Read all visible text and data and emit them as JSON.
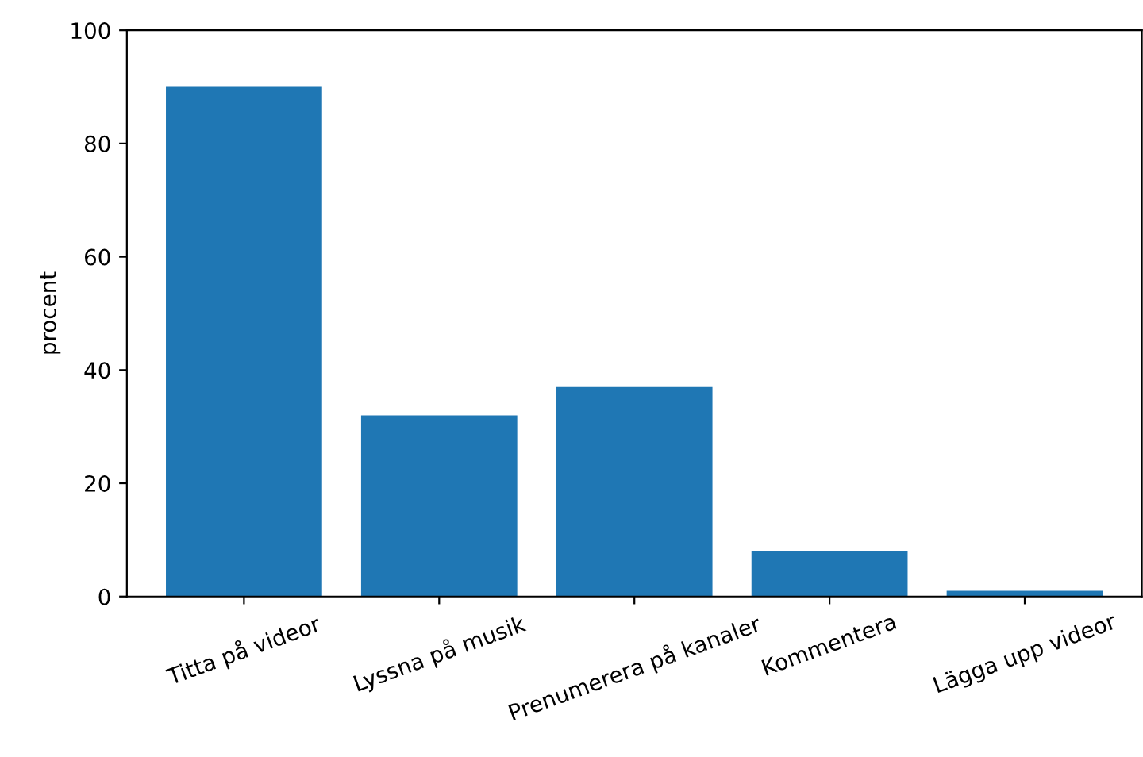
{
  "chart_data": {
    "type": "bar",
    "ylabel": "procent",
    "categories": [
      "Titta på videor",
      "Lyssna på musik",
      "Prenumerera på kanaler",
      "Kommentera",
      "Lägga upp videor"
    ],
    "values": [
      90,
      32,
      37,
      8,
      1
    ],
    "color": "#1f77b4",
    "ylim": [
      0,
      100
    ],
    "yticks": [
      0,
      20,
      40,
      60,
      80,
      100
    ],
    "grid": false
  }
}
